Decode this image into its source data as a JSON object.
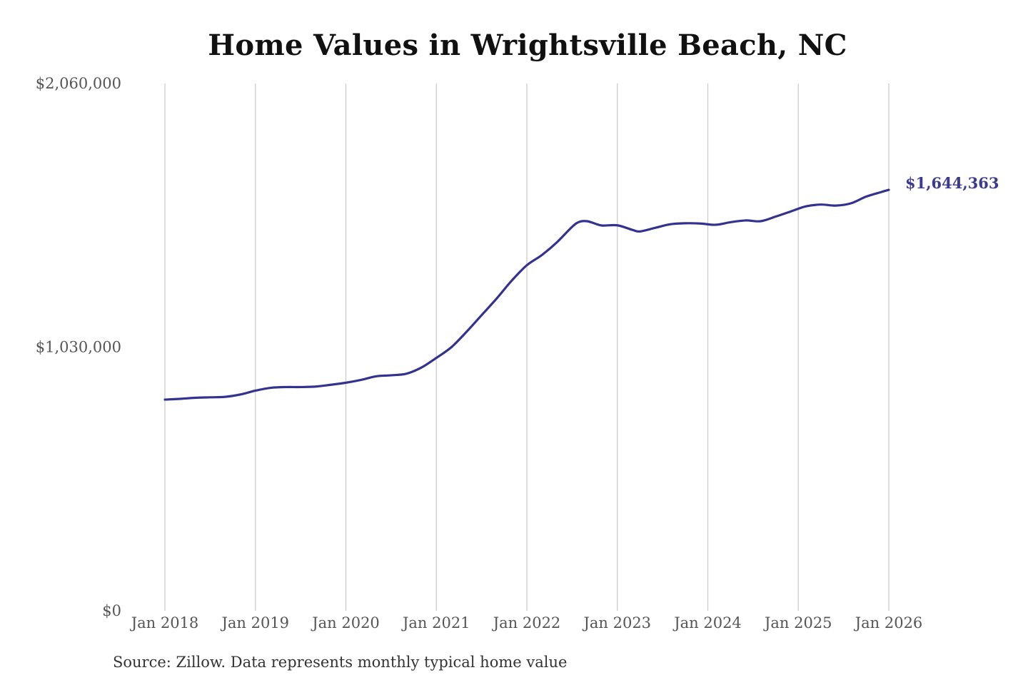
{
  "title": "Home Values in Wrightsville Beach, NC",
  "source": "Source: Zillow. Data represents monthly typical home value",
  "colors": {
    "line": "#33338f",
    "grid": "#c8c8c8",
    "end_label": "#3a3a8f"
  },
  "chart_data": {
    "type": "line",
    "title": "Home Values in Wrightsville Beach, NC",
    "xlabel": "",
    "ylabel": "",
    "ylim": [
      0,
      2060000
    ],
    "xlim": [
      "2018-01",
      "2026-01"
    ],
    "y_ticks": [
      {
        "value": 0,
        "label": "$0"
      },
      {
        "value": 1030000,
        "label": "$1,030,000"
      },
      {
        "value": 2060000,
        "label": "$2,060,000"
      }
    ],
    "x_ticks": [
      {
        "date": "2018-01",
        "label": "Jan 2018"
      },
      {
        "date": "2019-01",
        "label": "Jan 2019"
      },
      {
        "date": "2020-01",
        "label": "Jan 2020"
      },
      {
        "date": "2021-01",
        "label": "Jan 2021"
      },
      {
        "date": "2022-01",
        "label": "Jan 2022"
      },
      {
        "date": "2023-01",
        "label": "Jan 2023"
      },
      {
        "date": "2024-01",
        "label": "Jan 2024"
      },
      {
        "date": "2025-01",
        "label": "Jan 2025"
      },
      {
        "date": "2026-01",
        "label": "Jan 2026"
      }
    ],
    "vertical_grid": true,
    "horizontal_grid": false,
    "end_label": "$1,644,363",
    "series": [
      {
        "points": [
          [
            "2018-01",
            825000
          ],
          [
            "2018-03",
            828000
          ],
          [
            "2018-05",
            832000
          ],
          [
            "2018-07",
            834000
          ],
          [
            "2018-09",
            836000
          ],
          [
            "2018-11",
            845000
          ],
          [
            "2019-01",
            860000
          ],
          [
            "2019-03",
            871000
          ],
          [
            "2019-05",
            874000
          ],
          [
            "2019-07",
            874000
          ],
          [
            "2019-09",
            876000
          ],
          [
            "2019-11",
            883000
          ],
          [
            "2020-01",
            891000
          ],
          [
            "2020-03",
            902000
          ],
          [
            "2020-05",
            916000
          ],
          [
            "2020-07",
            920000
          ],
          [
            "2020-09",
            926000
          ],
          [
            "2020-11",
            950000
          ],
          [
            "2021-01",
            988000
          ],
          [
            "2021-03",
            1030000
          ],
          [
            "2021-05",
            1090000
          ],
          [
            "2021-07",
            1155000
          ],
          [
            "2021-09",
            1220000
          ],
          [
            "2021-11",
            1290000
          ],
          [
            "2022-01",
            1350000
          ],
          [
            "2022-03",
            1390000
          ],
          [
            "2022-05",
            1440000
          ],
          [
            "2022-07",
            1500000
          ],
          [
            "2022-08",
            1520000
          ],
          [
            "2022-09",
            1522000
          ],
          [
            "2022-10",
            1513000
          ],
          [
            "2022-11",
            1505000
          ],
          [
            "2023-01",
            1506000
          ],
          [
            "2023-03",
            1488000
          ],
          [
            "2023-04",
            1482000
          ],
          [
            "2023-06",
            1496000
          ],
          [
            "2023-08",
            1510000
          ],
          [
            "2023-10",
            1514000
          ],
          [
            "2023-12",
            1513000
          ],
          [
            "2024-02",
            1508000
          ],
          [
            "2024-04",
            1518000
          ],
          [
            "2024-06",
            1525000
          ],
          [
            "2024-08",
            1522000
          ],
          [
            "2024-10",
            1540000
          ],
          [
            "2024-12",
            1560000
          ],
          [
            "2025-02",
            1580000
          ],
          [
            "2025-04",
            1587000
          ],
          [
            "2025-06",
            1583000
          ],
          [
            "2025-08",
            1592000
          ],
          [
            "2025-10",
            1618000
          ],
          [
            "2025-12",
            1636000
          ],
          [
            "2026-01",
            1644363
          ]
        ]
      }
    ]
  }
}
